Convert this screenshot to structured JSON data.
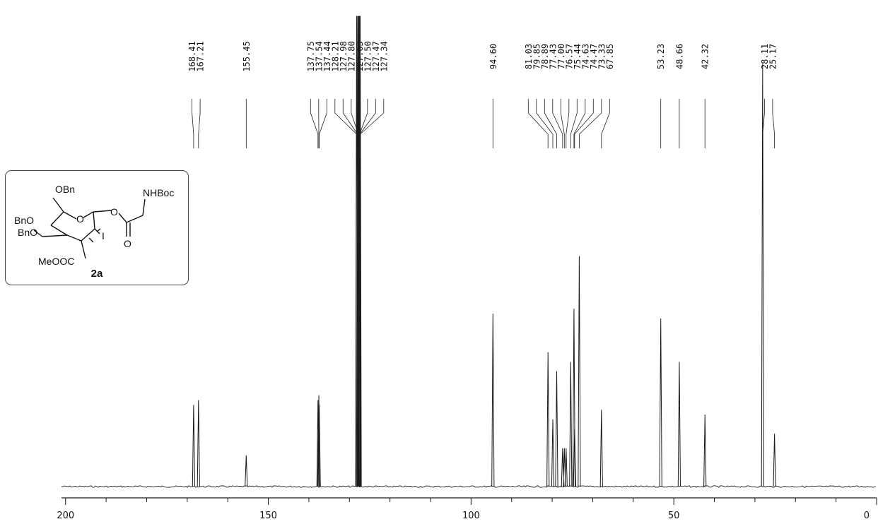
{
  "chart_data": {
    "type": "line",
    "title": "",
    "xlabel": "",
    "ylabel": "",
    "xlim": [
      201,
      0
    ],
    "x_ticks": [
      200,
      150,
      100,
      50,
      0
    ],
    "x_tick_labels": [
      "200",
      "150",
      "100",
      "50",
      "0"
    ],
    "grid": false,
    "series": [
      {
        "peaks": [
          {
            "ppm": 168.41,
            "height": 0.17
          },
          {
            "ppm": 167.21,
            "height": 0.18
          },
          {
            "ppm": 155.45,
            "height": 0.065
          },
          {
            "ppm": 137.75,
            "height": 0.18
          },
          {
            "ppm": 137.54,
            "height": 0.19
          },
          {
            "ppm": 137.44,
            "height": 0.17
          },
          {
            "ppm": 128.21,
            "height": 0.98
          },
          {
            "ppm": 127.98,
            "height": 0.98
          },
          {
            "ppm": 127.8,
            "height": 0.98
          },
          {
            "ppm": 127.63,
            "height": 0.98
          },
          {
            "ppm": 127.5,
            "height": 0.98
          },
          {
            "ppm": 127.47,
            "height": 0.98
          },
          {
            "ppm": 127.34,
            "height": 0.98
          },
          {
            "ppm": 94.6,
            "height": 0.36
          },
          {
            "ppm": 81.03,
            "height": 0.28
          },
          {
            "ppm": 79.85,
            "height": 0.14
          },
          {
            "ppm": 78.89,
            "height": 0.24
          },
          {
            "ppm": 77.43,
            "height": 0.08
          },
          {
            "ppm": 77.0,
            "height": 0.08
          },
          {
            "ppm": 76.57,
            "height": 0.08
          },
          {
            "ppm": 75.44,
            "height": 0.26
          },
          {
            "ppm": 74.63,
            "height": 0.37
          },
          {
            "ppm": 74.47,
            "height": 0.12
          },
          {
            "ppm": 73.33,
            "height": 0.48
          },
          {
            "ppm": 67.85,
            "height": 0.16
          },
          {
            "ppm": 53.23,
            "height": 0.35
          },
          {
            "ppm": 48.66,
            "height": 0.26
          },
          {
            "ppm": 42.32,
            "height": 0.15
          },
          {
            "ppm": 28.11,
            "height": 0.88
          },
          {
            "ppm": 25.17,
            "height": 0.11
          }
        ]
      }
    ],
    "label_groups": [
      {
        "labels": [
          "168.41",
          "167.21"
        ],
        "ppm": [
          168.41,
          167.21
        ]
      },
      {
        "labels": [
          "155.45"
        ],
        "ppm": [
          155.45
        ]
      },
      {
        "labels": [
          "137.75",
          "137.54",
          "137.44"
        ],
        "ppm": [
          137.75,
          137.54,
          137.44
        ]
      },
      {
        "labels": [
          "128.21",
          "127.98",
          "127.80",
          "127.63",
          "127.50",
          "127.47",
          "127.34"
        ],
        "ppm": [
          128.21,
          127.98,
          127.8,
          127.63,
          127.5,
          127.47,
          127.34
        ]
      },
      {
        "labels": [
          "94.60"
        ],
        "ppm": [
          94.6
        ]
      },
      {
        "labels": [
          "81.03",
          "79.85",
          "78.89",
          "77.43",
          "77.00",
          "76.57",
          "75.44",
          "74.63",
          "74.47",
          "73.33"
        ],
        "ppm": [
          81.03,
          79.85,
          78.89,
          77.43,
          77.0,
          76.57,
          75.44,
          74.63,
          74.47,
          73.33
        ]
      },
      {
        "labels": [
          "67.85"
        ],
        "ppm": [
          67.85
        ]
      },
      {
        "labels": [
          "53.23"
        ],
        "ppm": [
          53.23
        ]
      },
      {
        "labels": [
          "48.66"
        ],
        "ppm": [
          48.66
        ]
      },
      {
        "labels": [
          "42.32"
        ],
        "ppm": [
          42.32
        ]
      },
      {
        "labels": [
          "28.11",
          "25.17"
        ],
        "ppm": [
          28.11,
          25.17
        ]
      }
    ]
  },
  "structure": {
    "compound_label": "2a",
    "substituents": [
      "OBn",
      "BnO",
      "BnO",
      "MeOOC",
      "O",
      "O",
      "O",
      "I",
      "NHBoc"
    ]
  }
}
